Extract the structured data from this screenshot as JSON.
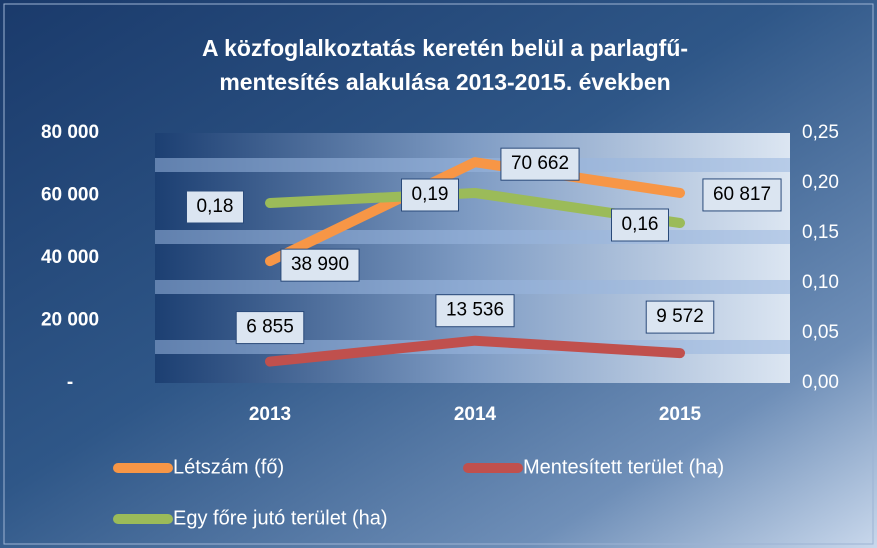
{
  "chart_data": {
    "type": "line",
    "title": [
      "A közfoglalkoztatás keretén belül a parlagfű-",
      "mentesítés alakulása 2013-2015. években"
    ],
    "categories": [
      "2013",
      "2014",
      "2015"
    ],
    "series": [
      {
        "name": "Létszám (fő)",
        "color": "#f79646",
        "values": [
          38990,
          70662,
          60817
        ],
        "value_labels": [
          "38 990",
          "70 662",
          "60 817"
        ]
      },
      {
        "name": "Mentesített terület (ha)",
        "color": "#c0504d",
        "values": [
          6855,
          13536,
          9572
        ],
        "value_labels": [
          "6 855",
          "13 536",
          "9 572"
        ]
      },
      {
        "name": "Egy főre jutó terület (ha)",
        "color": "#9bbb59",
        "axis": "y2",
        "values": [
          0.18,
          0.19,
          0.16
        ],
        "value_labels": [
          "0,18",
          "0,19",
          "0,16"
        ]
      }
    ],
    "ylim": [
      0,
      80000
    ],
    "yticks": [
      {
        "value": 0,
        "label": "-"
      },
      {
        "value": 20000,
        "label": "20 000"
      },
      {
        "value": 40000,
        "label": "40 000"
      },
      {
        "value": 60000,
        "label": "60 000"
      },
      {
        "value": 80000,
        "label": "80 000"
      }
    ],
    "y2lim": [
      0,
      0.25
    ],
    "y2ticks": [
      {
        "value": 0,
        "label": "0,00"
      },
      {
        "value": 0.05,
        "label": "0,05"
      },
      {
        "value": 0.1,
        "label": "0,10"
      },
      {
        "value": 0.15,
        "label": "0,15"
      },
      {
        "value": 0.2,
        "label": "0,20"
      },
      {
        "value": 0.25,
        "label": "0,25"
      }
    ],
    "legend": "bottom"
  }
}
